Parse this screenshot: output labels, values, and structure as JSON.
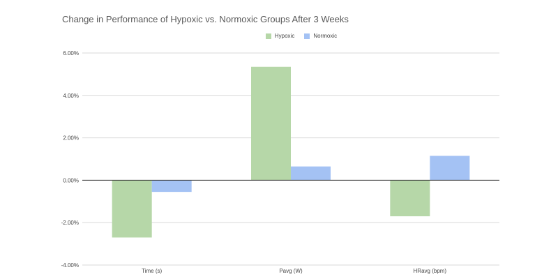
{
  "chart_data": {
    "type": "bar",
    "title": "Change in Performance of Hypoxic vs. Normoxic Groups After 3 Weeks",
    "xlabel": "",
    "ylabel": "",
    "categories": [
      "Time (s)",
      "Pavg (W)",
      "HRavg (bpm)"
    ],
    "series": [
      {
        "name": "Hypoxic",
        "color": "#b6d7a8",
        "values": [
          -2.7,
          5.35,
          -1.7
        ]
      },
      {
        "name": "Normoxic",
        "color": "#a4c2f4",
        "values": [
          -0.55,
          0.65,
          1.15
        ]
      }
    ],
    "ylim": [
      -4,
      6
    ],
    "yticks": [
      6,
      4,
      2,
      0,
      -2,
      -4
    ],
    "ytick_labels": [
      "6.00%",
      "4.00%",
      "2.00%",
      "0.00%",
      "-2.00%",
      "-4.00%"
    ],
    "grid": true,
    "legend_position": "top-center"
  }
}
